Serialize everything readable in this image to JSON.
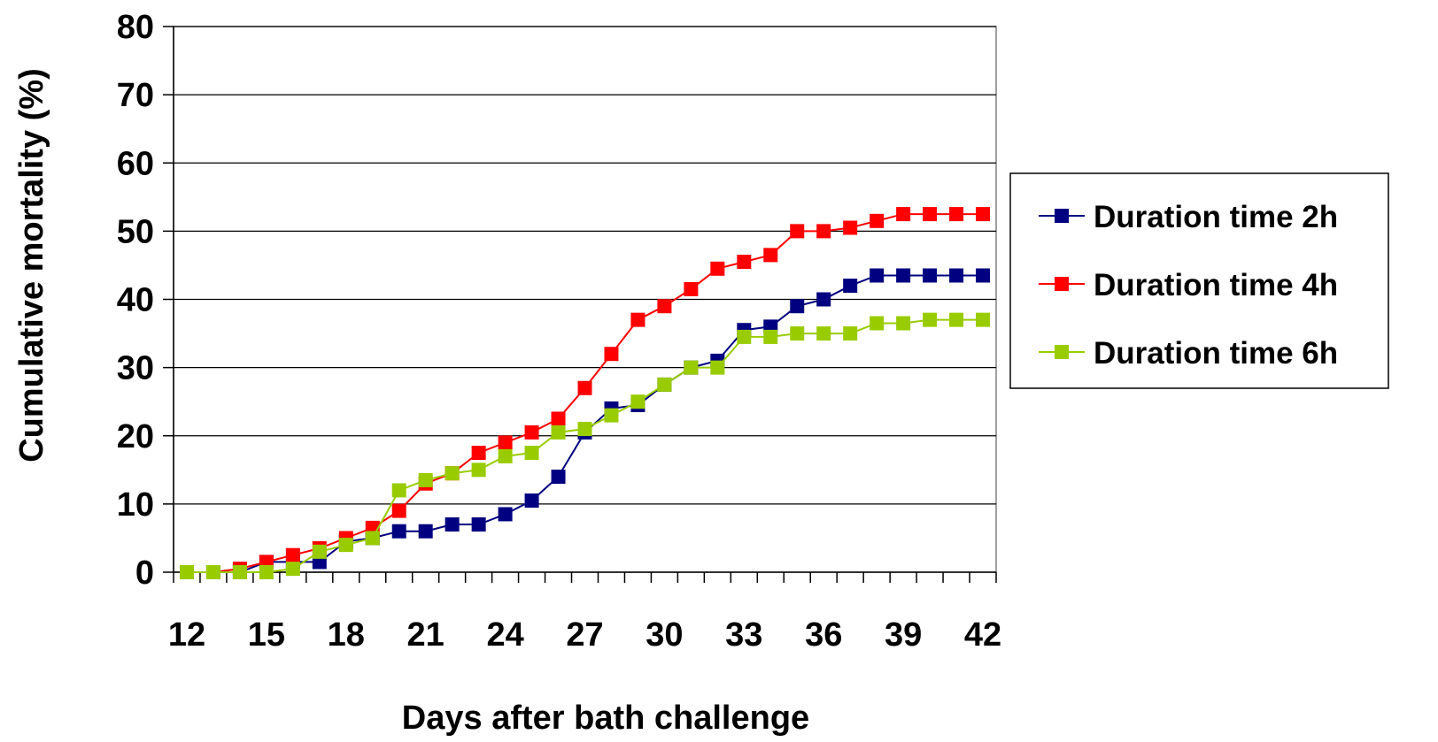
{
  "chart_data": {
    "type": "line",
    "xlabel": "Days after bath challenge",
    "ylabel": "Cumulative mortality (%)",
    "xlim": [
      12,
      42
    ],
    "ylim": [
      0,
      80
    ],
    "xticks": [
      12,
      15,
      18,
      21,
      24,
      27,
      30,
      33,
      36,
      39,
      42
    ],
    "yticks": [
      0,
      10,
      20,
      30,
      40,
      50,
      60,
      70,
      80
    ],
    "grid": "horizontal",
    "legend_position": "right",
    "x": [
      12,
      13,
      14,
      15,
      16,
      17,
      18,
      19,
      20,
      21,
      22,
      23,
      24,
      25,
      26,
      27,
      28,
      29,
      30,
      31,
      32,
      33,
      34,
      35,
      36,
      37,
      38,
      39,
      40,
      41,
      42
    ],
    "series": [
      {
        "name": "Duration time 2h",
        "color": "#000080",
        "values": [
          0,
          0,
          0,
          1.5,
          1.5,
          1.5,
          4.5,
          5,
          6,
          6,
          7,
          7,
          8.5,
          10.5,
          14,
          20.5,
          24,
          24.5,
          27.5,
          30,
          31,
          35.5,
          36,
          39,
          40,
          42,
          43.5,
          43.5,
          43.5,
          43.5,
          43.5
        ]
      },
      {
        "name": "Duration time 4h",
        "color": "#ff0000",
        "values": [
          0,
          0,
          0.5,
          1.5,
          2.5,
          3.5,
          5,
          6.5,
          9,
          13,
          14.5,
          17.5,
          19,
          20.5,
          22.5,
          27,
          32,
          37,
          39,
          41.5,
          44.5,
          45.5,
          46.5,
          50,
          50,
          50.5,
          51.5,
          52.5,
          52.5,
          52.5,
          52.5
        ]
      },
      {
        "name": "Duration time 6h",
        "color": "#99cc00",
        "values": [
          0,
          0,
          0,
          0,
          0.5,
          3,
          4,
          5,
          12,
          13.5,
          14.5,
          15,
          17,
          17.5,
          20.5,
          21,
          23,
          25,
          27.5,
          30,
          30,
          34.5,
          34.5,
          35,
          35,
          35,
          36.5,
          36.5,
          37,
          37,
          37
        ]
      }
    ]
  }
}
